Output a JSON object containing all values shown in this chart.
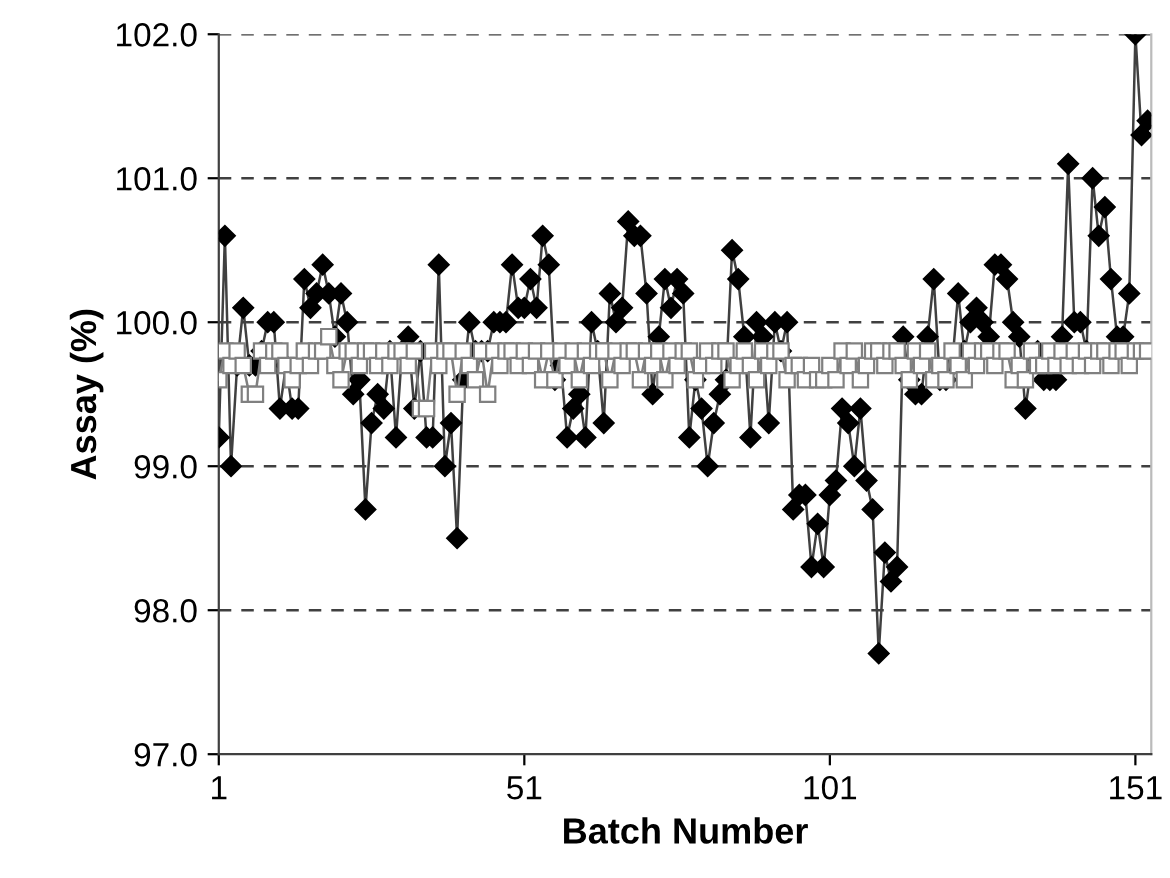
{
  "chart_data": {
    "type": "line",
    "xlabel": "Batch Number",
    "ylabel": "Assay (%)",
    "x": [
      1,
      2,
      3,
      4,
      5,
      6,
      7,
      8,
      9,
      10,
      11,
      12,
      13,
      14,
      15,
      16,
      17,
      18,
      19,
      20,
      21,
      22,
      23,
      24,
      25,
      26,
      27,
      28,
      29,
      30,
      31,
      32,
      33,
      34,
      35,
      36,
      37,
      38,
      39,
      40,
      41,
      42,
      43,
      44,
      45,
      46,
      47,
      48,
      49,
      50,
      51,
      52,
      53,
      54,
      55,
      56,
      57,
      58,
      59,
      60,
      61,
      62,
      63,
      64,
      65,
      66,
      67,
      68,
      69,
      70,
      71,
      72,
      73,
      74,
      75,
      76,
      77,
      78,
      79,
      80,
      81,
      82,
      83,
      84,
      85,
      86,
      87,
      88,
      89,
      90,
      91,
      92,
      93,
      94,
      95,
      96,
      97,
      98,
      99,
      100,
      101,
      102,
      103,
      104,
      105,
      106,
      107,
      108,
      109,
      110,
      111,
      112,
      113,
      114,
      115,
      116,
      117,
      118,
      119,
      120,
      121,
      122,
      123,
      124,
      125,
      126,
      127,
      128,
      129,
      130,
      131,
      132,
      133,
      134,
      135,
      136,
      137,
      138,
      139,
      140,
      141,
      142,
      143,
      144,
      145,
      146,
      147,
      148,
      149,
      150,
      151,
      152,
      153
    ],
    "series": [
      {
        "color": "#000000",
        "marker": "diamond",
        "values": [
          99.2,
          100.6,
          99.0,
          99.7,
          100.1,
          99.7,
          99.7,
          99.8,
          100.0,
          100.0,
          99.4,
          99.7,
          99.4,
          99.4,
          100.3,
          100.1,
          100.2,
          100.4,
          100.2,
          99.9,
          100.2,
          100.0,
          99.5,
          99.6,
          98.7,
          99.3,
          99.5,
          99.4,
          99.8,
          99.2,
          99.8,
          99.9,
          99.4,
          99.8,
          99.2,
          99.2,
          100.4,
          99.0,
          99.3,
          98.5,
          99.6,
          100.0,
          99.8,
          99.8,
          99.8,
          100.0,
          100.0,
          100.0,
          100.4,
          100.1,
          100.1,
          100.3,
          100.1,
          100.6,
          100.4,
          99.6,
          99.7,
          99.2,
          99.4,
          99.5,
          99.2,
          100.0,
          99.8,
          99.3,
          100.2,
          100.0,
          100.1,
          100.7,
          100.6,
          100.6,
          100.2,
          99.5,
          99.9,
          100.3,
          100.1,
          100.3,
          100.2,
          99.2,
          99.6,
          99.4,
          99.0,
          99.3,
          99.5,
          99.6,
          100.5,
          100.3,
          99.9,
          99.2,
          100.0,
          99.9,
          99.3,
          100.0,
          99.8,
          100.0,
          98.7,
          98.8,
          98.8,
          98.3,
          98.6,
          98.3,
          98.8,
          98.9,
          99.4,
          99.3,
          99.0,
          99.4,
          98.9,
          98.7,
          97.7,
          98.4,
          98.2,
          98.3,
          99.9,
          99.6,
          99.5,
          99.5,
          99.9,
          100.3,
          99.6,
          99.6,
          99.7,
          100.2,
          99.8,
          100.0,
          100.1,
          100.0,
          99.9,
          100.4,
          100.4,
          100.3,
          100.0,
          99.9,
          99.4,
          99.7,
          99.8,
          99.6,
          99.6,
          99.6,
          99.9,
          101.1,
          100.0,
          100.0,
          99.8,
          101.0,
          100.6,
          100.8,
          100.3,
          99.9,
          99.9,
          100.2,
          102.0,
          101.3,
          101.4
        ]
      },
      {
        "color": "#ffffff",
        "marker": "square",
        "values": [
          99.6,
          99.8,
          99.7,
          99.8,
          99.7,
          99.5,
          99.5,
          99.8,
          99.7,
          99.8,
          99.8,
          99.7,
          99.6,
          99.7,
          99.8,
          99.7,
          99.8,
          99.8,
          99.9,
          99.7,
          99.6,
          99.8,
          99.8,
          99.7,
          99.8,
          99.8,
          99.7,
          99.8,
          99.7,
          99.8,
          99.8,
          99.7,
          99.8,
          99.4,
          99.4,
          99.8,
          99.7,
          99.8,
          99.8,
          99.5,
          99.8,
          99.7,
          99.6,
          99.8,
          99.5,
          99.8,
          99.7,
          99.8,
          99.8,
          99.7,
          99.8,
          99.7,
          99.8,
          99.6,
          99.8,
          99.6,
          99.8,
          99.7,
          99.8,
          99.6,
          99.8,
          99.7,
          99.8,
          99.8,
          99.6,
          99.8,
          99.7,
          99.8,
          99.8,
          99.6,
          99.8,
          99.7,
          99.8,
          99.6,
          99.8,
          99.7,
          99.8,
          99.8,
          99.6,
          99.7,
          99.8,
          99.7,
          99.8,
          99.8,
          99.6,
          99.7,
          99.8,
          99.7,
          99.6,
          99.8,
          99.7,
          99.8,
          99.8,
          99.6,
          99.7,
          99.7,
          99.6,
          99.7,
          99.6,
          99.6,
          99.7,
          99.6,
          99.8,
          99.7,
          99.8,
          99.6,
          99.7,
          99.8,
          99.8,
          99.7,
          99.8,
          99.8,
          99.7,
          99.6,
          99.8,
          99.7,
          99.8,
          99.6,
          99.7,
          99.6,
          99.8,
          99.7,
          99.6,
          99.8,
          99.7,
          99.8,
          99.8,
          99.7,
          99.8,
          99.8,
          99.6,
          99.7,
          99.6,
          99.8,
          99.7,
          99.7,
          99.8,
          99.7,
          99.8,
          99.7,
          99.8,
          99.7,
          99.8,
          99.7,
          99.8,
          99.8,
          99.7,
          99.8,
          99.8,
          99.7,
          99.8,
          99.8,
          99.8
        ]
      }
    ],
    "xlim": [
      1,
      153.6
    ],
    "xticks": [
      1,
      51,
      101,
      151
    ],
    "ylim": [
      97,
      102
    ],
    "yticks": [
      {
        "value": 97,
        "label": "97.0"
      },
      {
        "value": 98,
        "label": "98.0"
      },
      {
        "value": 99,
        "label": "99.0"
      },
      {
        "value": 100,
        "label": "100.0"
      },
      {
        "value": 101,
        "label": "101.0"
      },
      {
        "value": 102,
        "label": "102.0"
      }
    ],
    "grid": "y",
    "line_style": "solid",
    "legend": false
  }
}
